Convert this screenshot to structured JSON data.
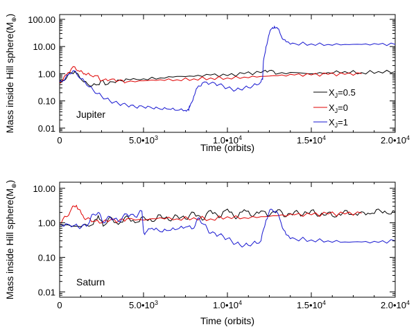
{
  "chart_data": [
    {
      "type": "line",
      "panel_label": "Jupiter",
      "xlabel": "Time (orbits)",
      "ylabel": "Mass inside Hill sphere(M",
      "ylabel_symbol": "⊕",
      "ylabel_close": ")",
      "xlim": [
        0,
        20000
      ],
      "ylim": [
        0.007,
        150
      ],
      "yscale": "log",
      "x_ticks": [
        {
          "value": 0,
          "mant": "0",
          "exp": ""
        },
        {
          "value": 5000,
          "mant": "5.0•10",
          "exp": "3"
        },
        {
          "value": 10000,
          "mant": "1.0•10",
          "exp": "4"
        },
        {
          "value": 15000,
          "mant": "1.5•10",
          "exp": "4"
        },
        {
          "value": 20000,
          "mant": "2.0•10",
          "exp": "4"
        }
      ],
      "y_ticks": [
        {
          "value": 0.01,
          "label": "0.01"
        },
        {
          "value": 0.1,
          "label": "0.10"
        },
        {
          "value": 1,
          "label": "1.00"
        },
        {
          "value": 10,
          "label": "10.00"
        },
        {
          "value": 100,
          "label": "100.00"
        }
      ],
      "legend": [
        {
          "name": "X",
          "sub": "J",
          "val": "=0.5",
          "color": "#000000"
        },
        {
          "name": "X",
          "sub": "J",
          "val": "=0",
          "color": "#e00000"
        },
        {
          "name": "X",
          "sub": "J",
          "val": "=1",
          "color": "#1515d0"
        }
      ],
      "series": [
        {
          "name": "X_J=0.5",
          "color": "#000000",
          "x": [
            0,
            200,
            500,
            900,
            1300,
            1800,
            2300,
            2500,
            2800,
            3200,
            3700,
            4200,
            5000,
            6000,
            7000,
            8000,
            9000,
            10000,
            11000,
            12000,
            12500,
            13000,
            14000,
            15000,
            16000,
            17000,
            18000,
            19000,
            20000
          ],
          "y": [
            0.5,
            0.55,
            0.9,
            1.2,
            0.6,
            0.35,
            0.4,
            0.55,
            0.4,
            0.5,
            0.55,
            0.6,
            0.65,
            0.7,
            0.8,
            0.8,
            0.9,
            0.85,
            1.0,
            1.1,
            1.3,
            1.0,
            1.1,
            1.0,
            1.1,
            1.2,
            1.1,
            1.2,
            1.2
          ]
        },
        {
          "name": "X_J=0",
          "color": "#e00000",
          "x": [
            0,
            200,
            500,
            900,
            1200,
            1500,
            1800,
            2200,
            2500,
            3000,
            3500,
            4000,
            5000,
            6000,
            7000,
            8000,
            9000,
            10000,
            11000,
            12000,
            13000,
            14000,
            15000,
            16000,
            17000,
            18000
          ],
          "y": [
            0.5,
            0.6,
            1.1,
            1.8,
            1.2,
            1.0,
            0.9,
            0.85,
            0.55,
            0.6,
            0.55,
            0.5,
            0.55,
            0.6,
            0.6,
            0.65,
            0.7,
            0.7,
            0.75,
            0.8,
            0.85,
            0.9,
            0.9,
            0.95,
            0.95,
            1.0
          ]
        },
        {
          "name": "X_J=1",
          "color": "#1515d0",
          "x": [
            0,
            200,
            500,
            800,
            1000,
            1500,
            2000,
            2500,
            3000,
            3500,
            4000,
            4500,
            5000,
            5500,
            6000,
            6500,
            7000,
            7500,
            7700,
            7750,
            8000,
            8200,
            8500,
            9000,
            9500,
            10000,
            10500,
            11000,
            11500,
            12000,
            12100,
            12150,
            12300,
            12500,
            12700,
            12800,
            13000,
            13200,
            13500,
            14000,
            15000,
            16000,
            17000,
            18000,
            19000,
            20000
          ],
          "y": [
            0.5,
            0.55,
            0.9,
            1.3,
            1.0,
            0.5,
            0.25,
            0.15,
            0.1,
            0.08,
            0.07,
            0.06,
            0.06,
            0.055,
            0.05,
            0.05,
            0.045,
            0.045,
            0.045,
            0.06,
            0.15,
            0.3,
            0.45,
            0.45,
            0.4,
            0.3,
            0.25,
            0.3,
            0.35,
            0.5,
            0.6,
            3.0,
            10.0,
            30.0,
            50.0,
            55.0,
            45.0,
            25.0,
            15.0,
            13.0,
            12.5,
            12.0,
            12.0,
            12.0,
            12.0,
            12.0
          ]
        }
      ]
    },
    {
      "type": "line",
      "panel_label": "Saturn",
      "xlabel": "Time (orbits)",
      "ylabel": "Mass inside Hill sphere(M",
      "ylabel_symbol": "⊕",
      "ylabel_close": ")",
      "xlim": [
        0,
        20000
      ],
      "ylim": [
        0.007,
        15
      ],
      "yscale": "log",
      "x_ticks": [
        {
          "value": 0,
          "mant": "0",
          "exp": ""
        },
        {
          "value": 5000,
          "mant": "5.0•10",
          "exp": "3"
        },
        {
          "value": 10000,
          "mant": "1.0•10",
          "exp": "4"
        },
        {
          "value": 15000,
          "mant": "1.5•10",
          "exp": "4"
        },
        {
          "value": 20000,
          "mant": "2.0•10",
          "exp": "4"
        }
      ],
      "y_ticks": [
        {
          "value": 0.01,
          "label": "0.01"
        },
        {
          "value": 0.1,
          "label": "0.10"
        },
        {
          "value": 1,
          "label": "1.00"
        },
        {
          "value": 10,
          "label": "10.00"
        }
      ],
      "series": [
        {
          "name": "X_J=0.5",
          "color": "#000000",
          "x": [
            0,
            1000,
            2000,
            2300,
            2600,
            3000,
            3500,
            4000,
            4500,
            5000,
            5500,
            6000,
            6500,
            7000,
            7500,
            8000,
            8500,
            9000,
            9500,
            10000,
            10500,
            11000,
            11500,
            12000,
            12500,
            13000,
            13500,
            14000,
            14500,
            15000,
            15500,
            16000,
            16500,
            17000,
            17500,
            18000,
            18500,
            19000,
            19500,
            20000
          ],
          "y": [
            0.9,
            0.8,
            0.9,
            1.6,
            0.8,
            1.5,
            0.9,
            1.6,
            1.0,
            1.5,
            1.1,
            1.7,
            1.2,
            1.6,
            1.3,
            2.0,
            1.2,
            2.3,
            1.4,
            2.5,
            1.3,
            2.4,
            1.5,
            2.2,
            1.6,
            2.4,
            1.5,
            2.1,
            1.7,
            2.3,
            1.6,
            2.0,
            1.5,
            2.3,
            1.7,
            2.1,
            1.8,
            2.5,
            1.9,
            2.1
          ]
        },
        {
          "name": "X_J=0",
          "color": "#e00000",
          "x": [
            0,
            400,
            700,
            1000,
            1300,
            1600,
            2000,
            2500,
            3000,
            3500,
            4000,
            5000,
            6000,
            7000,
            8000,
            9000,
            10000,
            11000,
            12000,
            13000,
            14000,
            15000,
            16000,
            17000,
            18000
          ],
          "y": [
            1.0,
            1.5,
            2.5,
            3.2,
            1.8,
            1.3,
            1.1,
            1.0,
            1.2,
            1.1,
            1.3,
            1.2,
            1.4,
            1.3,
            1.4,
            1.3,
            1.5,
            1.4,
            1.5,
            1.6,
            1.7,
            1.7,
            1.8,
            1.8,
            1.9
          ]
        },
        {
          "name": "X_J=1",
          "color": "#1515d0",
          "x": [
            0,
            500,
            900,
            1300,
            1700,
            2000,
            2300,
            2600,
            3000,
            3500,
            4000,
            4500,
            4900,
            5000,
            5100,
            5500,
            6000,
            6500,
            7000,
            7500,
            8000,
            8300,
            8600,
            9000,
            9500,
            10000,
            10500,
            11000,
            11500,
            12000,
            12300,
            12600,
            12900,
            13200,
            13500,
            14000,
            15000,
            16000,
            17000,
            18000,
            19000,
            20000
          ],
          "y": [
            0.9,
            0.9,
            0.85,
            0.75,
            0.9,
            1.8,
            2.0,
            1.0,
            1.5,
            1.1,
            1.8,
            1.5,
            2.2,
            0.6,
            0.5,
            0.7,
            0.55,
            0.6,
            0.65,
            0.75,
            0.7,
            1.4,
            0.9,
            0.5,
            0.45,
            0.35,
            0.25,
            0.22,
            0.25,
            0.3,
            1.2,
            2.5,
            2.2,
            1.0,
            0.45,
            0.35,
            0.32,
            0.3,
            0.28,
            0.28,
            0.27,
            0.3
          ]
        }
      ]
    }
  ]
}
